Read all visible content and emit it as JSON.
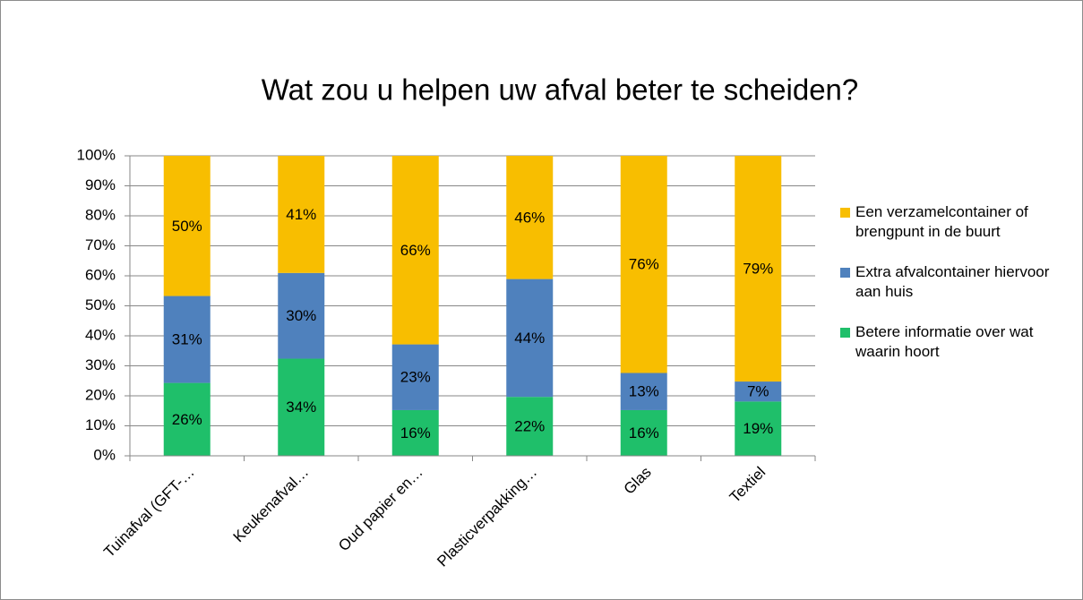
{
  "chart_data": {
    "type": "bar",
    "stacked": "percent",
    "title": "Wat zou u helpen uw afval beter te scheiden?",
    "categories": [
      "Tuinafval (GFT-…",
      "Keukenafval…",
      "Oud papier en…",
      "Plasticverpakking…",
      "Glas",
      "Textiel"
    ],
    "series": [
      {
        "name": "Betere informatie over wat waarin hoort",
        "color": "#1fbf6a",
        "values": [
          26,
          34,
          16,
          22,
          16,
          19
        ],
        "value_labels": [
          "26%",
          "34%",
          "16%",
          "22%",
          "16%",
          "19%"
        ]
      },
      {
        "name": "Extra afvalcontainer hiervoor aan huis",
        "color": "#4f81bd",
        "values": [
          31,
          30,
          23,
          44,
          13,
          7
        ],
        "value_labels": [
          "31%",
          "30%",
          "23%",
          "44%",
          "13%",
          "7%"
        ]
      },
      {
        "name": "Een verzamelcontainer of brengpunt in de buurt",
        "color": "#f8be00",
        "values": [
          50,
          41,
          66,
          46,
          76,
          79
        ],
        "value_labels": [
          "50%",
          "41%",
          "66%",
          "46%",
          "76%",
          "79%"
        ]
      }
    ],
    "ylim": [
      0,
      100
    ],
    "yticks": [
      {
        "value": 0,
        "label": "0%"
      },
      {
        "value": 10,
        "label": "10%"
      },
      {
        "value": 20,
        "label": "20%"
      },
      {
        "value": 30,
        "label": "30%"
      },
      {
        "value": 40,
        "label": "40%"
      },
      {
        "value": 50,
        "label": "50%"
      },
      {
        "value": 60,
        "label": "60%"
      },
      {
        "value": 70,
        "label": "70%"
      },
      {
        "value": 80,
        "label": "80%"
      },
      {
        "value": 90,
        "label": "90%"
      },
      {
        "value": 100,
        "label": "100%"
      }
    ],
    "grid": true,
    "legend": "right"
  }
}
